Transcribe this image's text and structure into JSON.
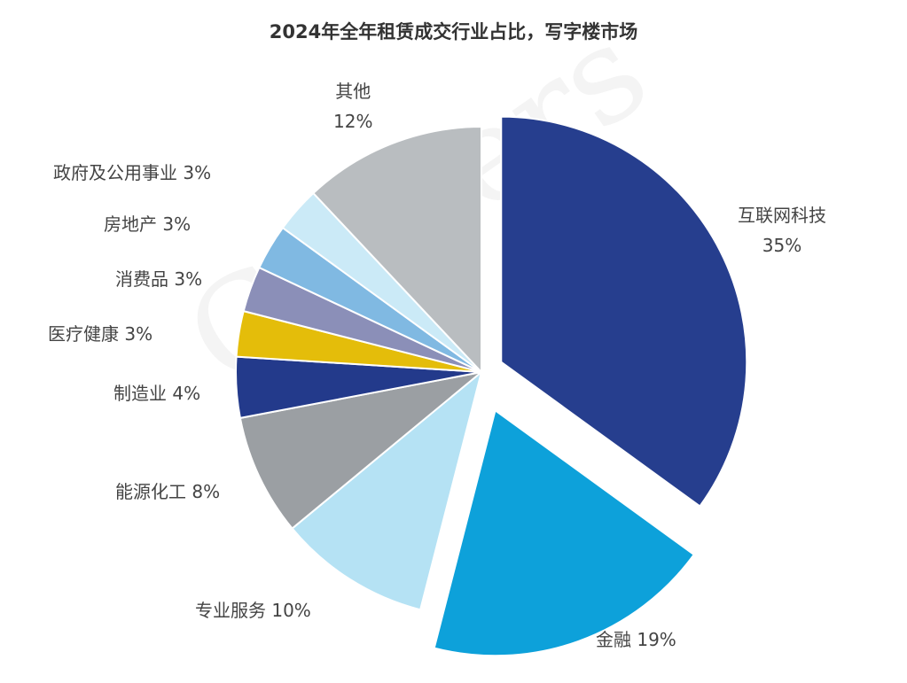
{
  "watermark": "Colliers",
  "chart_data": {
    "type": "pie",
    "title": "2024年全年租赁成交行业占比，写字楼市场",
    "slices": [
      {
        "label": "互联网科技",
        "value": 35,
        "display": "35%",
        "color": "#263e8e",
        "exploded": true
      },
      {
        "label": "金融",
        "value": 19,
        "display": "19%",
        "color": "#0da1da",
        "exploded": true
      },
      {
        "label": "专业服务",
        "value": 10,
        "display": "10%",
        "color": "#b5e2f4",
        "exploded": false
      },
      {
        "label": "能源化工",
        "value": 8,
        "display": "8%",
        "color": "#9b9fa3",
        "exploded": false
      },
      {
        "label": "制造业",
        "value": 4,
        "display": "4%",
        "color": "#233a8b",
        "exploded": false
      },
      {
        "label": "医疗健康",
        "value": 3,
        "display": "3%",
        "color": "#e4bd0a",
        "exploded": false
      },
      {
        "label": "消费品",
        "value": 3,
        "display": "3%",
        "color": "#8b8fb8",
        "exploded": false
      },
      {
        "label": "房地产",
        "value": 3,
        "display": "3%",
        "color": "#80b9e2",
        "exploded": false
      },
      {
        "label": "政府及公用事业",
        "value": 3,
        "display": "3%",
        "color": "#cbeaf7",
        "exploded": false
      },
      {
        "label": "其他",
        "value": 12,
        "display": "12%",
        "color": "#b9bdc0",
        "exploded": false
      }
    ],
    "legend": "none"
  }
}
